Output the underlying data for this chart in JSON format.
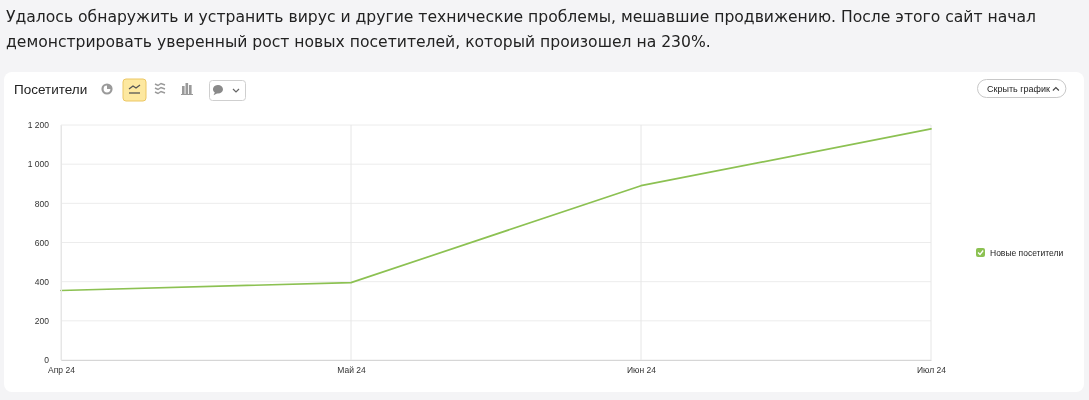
{
  "chart_data": {
    "type": "line",
    "title": "Посетители",
    "annotations": [
      "Удалось обнаружить и устранить вирус и другие технические проблемы, мешавшие продвижению. После этого сайт начал демонстрировать уверенный рост новых посетителей, который произошел на 230%.",
      "Скрыть график"
    ],
    "categories": [
      "Апр 24",
      "Май 24",
      "Июн 24",
      "Июл 24"
    ],
    "series": [
      {
        "name": "Новые посетители",
        "color": "#8cc152",
        "values": [
          355,
          395,
          890,
          1180
        ]
      }
    ],
    "ylim": [
      0,
      1200
    ],
    "yticks": [
      0,
      200,
      400,
      600,
      800,
      {
        "value": 1000,
        "label": "1 000"
      },
      {
        "value": 1200,
        "label": "1 200"
      }
    ],
    "grid": true,
    "legend": "right"
  }
}
